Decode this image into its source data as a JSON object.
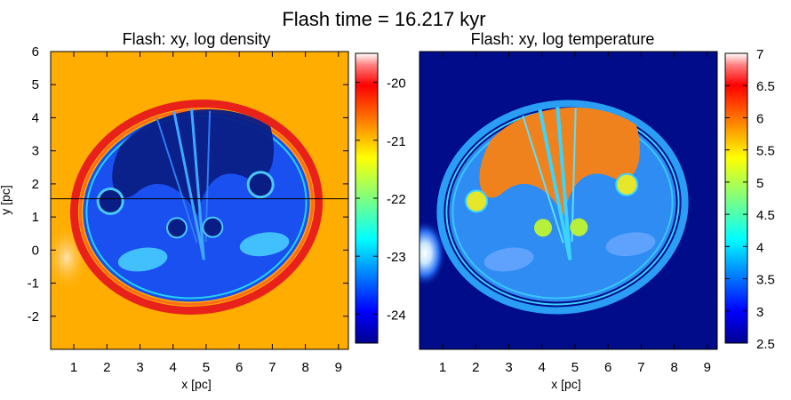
{
  "figure": {
    "title": "Flash time = 16.217 kyr"
  },
  "chart_data": [
    {
      "type": "heatmap",
      "title": "Flash: xy, log density",
      "xlabel": "x [pc]",
      "ylabel": "y [pc]",
      "xlim": [
        0.3,
        9.3
      ],
      "ylim": [
        -3.0,
        6.0
      ],
      "xticks": [
        1,
        2,
        3,
        4,
        5,
        6,
        7,
        8,
        9
      ],
      "yticks": [
        6,
        5,
        4,
        3,
        2,
        1,
        0,
        -1,
        -2
      ],
      "colorbar": {
        "range": [
          -24.5,
          -19.5
        ],
        "ticks": [
          -20,
          -21,
          -22,
          -23,
          -24
        ],
        "colormap": "jet"
      },
      "background_color": "#ffad00",
      "interior_color": "#1a4ff0",
      "shell_color": "#e8211a",
      "cut_line_y": 1.55
    },
    {
      "type": "heatmap",
      "title": "Flash: xy, log temperature",
      "xlabel": "x [pc]",
      "ylabel": "",
      "xlim": [
        0.3,
        9.3
      ],
      "ylim": [
        -3.0,
        6.0
      ],
      "xticks": [
        1,
        2,
        3,
        4,
        5,
        6,
        7,
        8,
        9
      ],
      "yticks": [],
      "colorbar": {
        "range": [
          2.5,
          7.0
        ],
        "ticks": [
          7,
          6.5,
          6,
          5.5,
          5,
          4.5,
          4,
          3.5,
          3,
          2.5
        ],
        "colormap": "jet"
      },
      "background_color": "#000c8a",
      "interior_color": "#2f8cf2",
      "hot_color": "#f0821e"
    }
  ]
}
